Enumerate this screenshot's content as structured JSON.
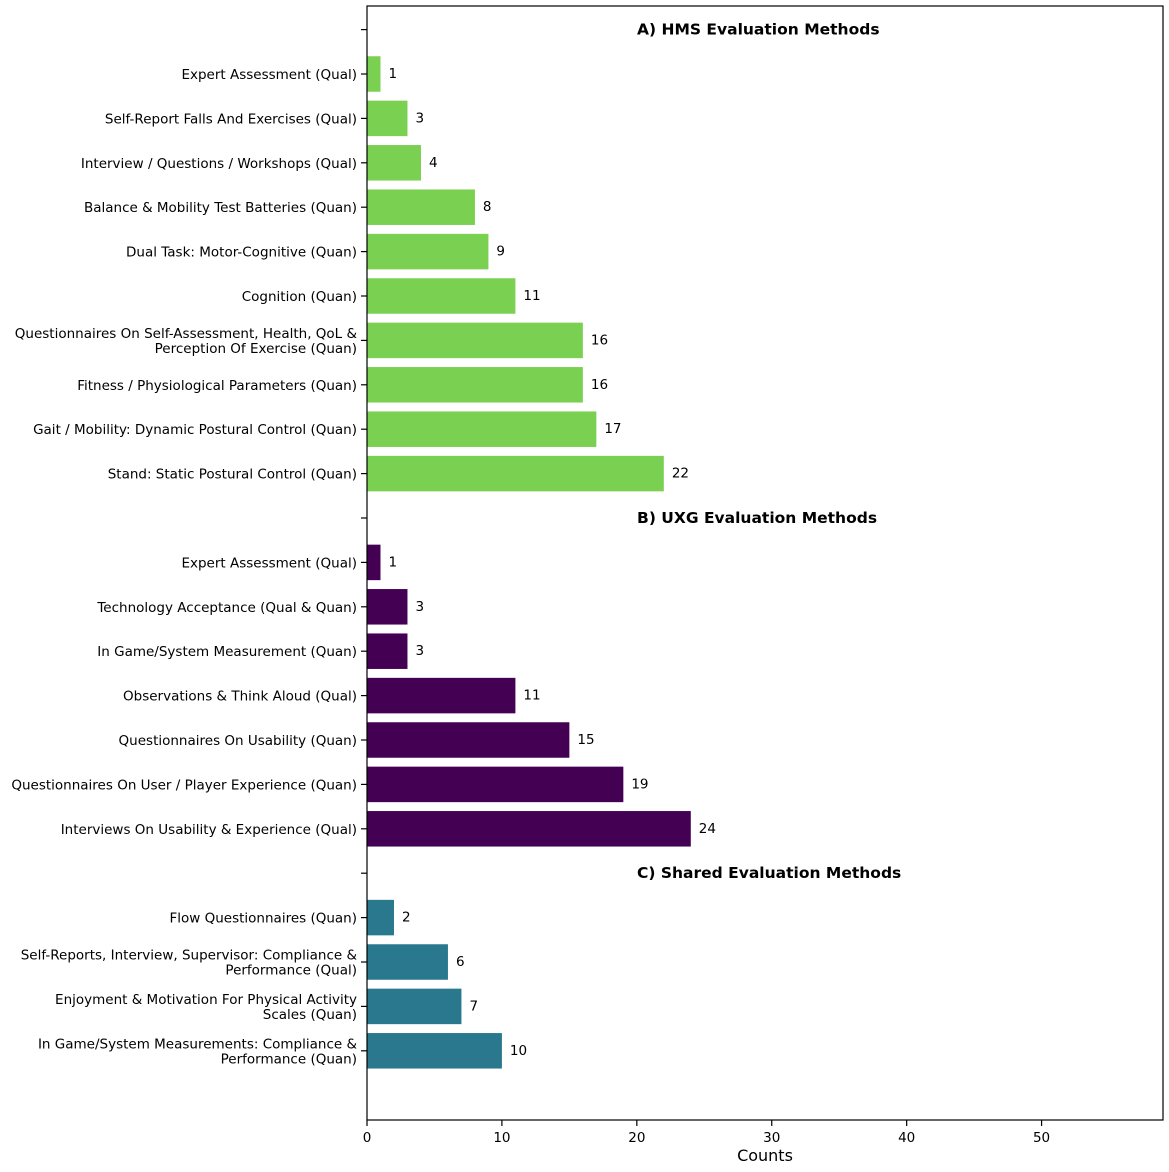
{
  "chart_data": {
    "type": "bar",
    "orientation": "horizontal",
    "xlabel": "Counts",
    "xlim": [
      0,
      59
    ],
    "xticks": [
      0,
      10,
      20,
      30,
      40,
      50
    ],
    "grid": false,
    "groups": [
      {
        "title": "A) HMS Evaluation Methods",
        "color": "#7ad151",
        "bars": [
          {
            "label": [
              "Expert Assessment (Qual)"
            ],
            "value": 1
          },
          {
            "label": [
              "Self-Report Falls And Exercises (Qual)"
            ],
            "value": 3
          },
          {
            "label": [
              "Interview / Questions / Workshops (Qual)"
            ],
            "value": 4
          },
          {
            "label": [
              "Balance & Mobility Test Batteries (Quan)"
            ],
            "value": 8
          },
          {
            "label": [
              "Dual Task: Motor-Cognitive (Quan)"
            ],
            "value": 9
          },
          {
            "label": [
              "Cognition (Quan)"
            ],
            "value": 11
          },
          {
            "label": [
              "Questionnaires On Self-Assessment, Health, QoL &",
              "Perception Of Exercise (Quan)"
            ],
            "value": 16
          },
          {
            "label": [
              "Fitness / Physiological Parameters (Quan)"
            ],
            "value": 16
          },
          {
            "label": [
              "Gait / Mobility: Dynamic Postural Control (Quan)"
            ],
            "value": 17
          },
          {
            "label": [
              "Stand: Static Postural Control (Quan)"
            ],
            "value": 22
          }
        ]
      },
      {
        "title": "B) UXG Evaluation Methods",
        "color": "#440154",
        "bars": [
          {
            "label": [
              "Expert Assessment (Qual)"
            ],
            "value": 1
          },
          {
            "label": [
              "Technology Acceptance (Qual & Quan)"
            ],
            "value": 3
          },
          {
            "label": [
              "In Game/System Measurement (Quan)"
            ],
            "value": 3
          },
          {
            "label": [
              "Observations & Think Aloud (Qual)"
            ],
            "value": 11
          },
          {
            "label": [
              "Questionnaires On Usability (Quan)"
            ],
            "value": 15
          },
          {
            "label": [
              "Questionnaires On User / Player Experience (Quan)"
            ],
            "value": 19
          },
          {
            "label": [
              "Interviews On Usability & Experience (Qual)"
            ],
            "value": 24
          }
        ]
      },
      {
        "title": "C) Shared Evaluation Methods",
        "color": "#2a788e",
        "bars": [
          {
            "label": [
              "Flow Questionnaires (Quan)"
            ],
            "value": 2
          },
          {
            "label": [
              "Self-Reports, Interview, Supervisor: Compliance &",
              "Performance (Qual)"
            ],
            "value": 6
          },
          {
            "label": [
              "Enjoyment & Motivation For Physical Activity",
              "Scales (Quan)"
            ],
            "value": 7
          },
          {
            "label": [
              "In Game/System Measurements: Compliance &",
              "Performance (Quan)"
            ],
            "value": 10
          }
        ]
      }
    ]
  }
}
